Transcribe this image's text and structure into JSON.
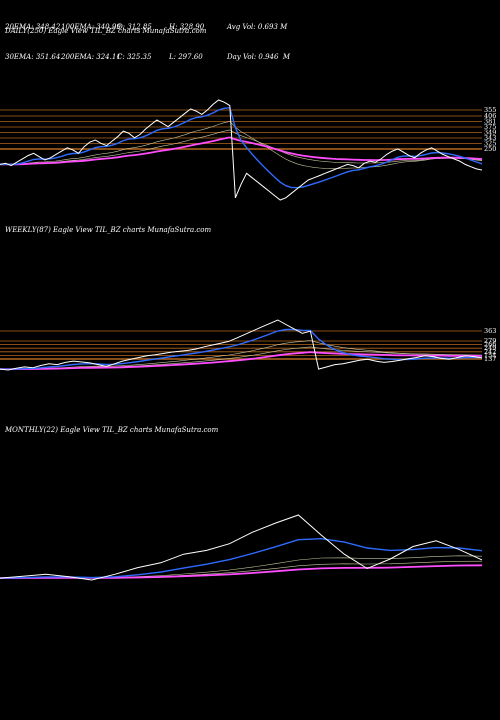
{
  "stats": {
    "row1": [
      "20EMA: 348.42",
      "100EMA: 340.99",
      "O: 312.85",
      "H: 328.90",
      "Avg Vol: 0.693 M"
    ],
    "row2": [
      "30EMA: 351.64",
      "200EMA: 324.11",
      "C: 325.35",
      "L: 297.60",
      "Day Vol: 0.946  M"
    ]
  },
  "colors": {
    "background": "#000000",
    "price": "#ffffff",
    "ema_fast": "#2f6bff",
    "ema_long": "#ff4dff",
    "level_line": "#b5651d",
    "ema_misc": "#c8c8a0"
  },
  "chart_data": [
    {
      "type": "line",
      "title": "DAILY(250) Eagle  View  TIL_BZ charts MunafaSutra.com",
      "level_labels": [
        "355",
        "406",
        "381",
        "375",
        "349",
        "343",
        "325",
        "250"
      ],
      "y_scale": "unlabeled",
      "series": [
        {
          "values": [
            330,
            331,
            329,
            332,
            335,
            338,
            340,
            337,
            334,
            336,
            339,
            342,
            345,
            343,
            340,
            346,
            350,
            352,
            349,
            347,
            351,
            355,
            360,
            358,
            354,
            357,
            362,
            366,
            370,
            367,
            364,
            368,
            372,
            376,
            380,
            378,
            375,
            379,
            384,
            388,
            386,
            383,
            300,
            312,
            322,
            318,
            314,
            310,
            306,
            302,
            298,
            300,
            304,
            308,
            312,
            316,
            318,
            320,
            322,
            324,
            326,
            328,
            330,
            329,
            327,
            331,
            333,
            332,
            335,
            339,
            342,
            344,
            341,
            338,
            336,
            340,
            343,
            345,
            342,
            339,
            337,
            335,
            333,
            330,
            328,
            326,
            325
          ]
        }
      ]
    },
    {
      "type": "line",
      "title": "WEEKLY(87) Eagle  View  TIL_BZ charts MunafaSutra.com",
      "level_labels": [
        "363",
        "279",
        "266",
        "249",
        "242",
        "154",
        "137"
      ],
      "y_scale": "unlabeled",
      "series": [
        {
          "values": [
            240,
            238,
            242,
            245,
            243,
            248,
            252,
            250,
            255,
            258,
            256,
            254,
            250,
            246,
            252,
            258,
            262,
            266,
            270,
            272,
            275,
            278,
            280,
            282,
            285,
            290,
            294,
            298,
            302,
            310,
            318,
            326,
            334,
            342,
            350,
            340,
            330,
            320,
            325,
            240,
            245,
            250,
            252,
            256,
            260,
            262,
            258,
            255,
            257,
            260,
            263,
            266,
            270,
            268,
            264,
            262,
            266,
            270,
            268,
            265
          ]
        }
      ]
    },
    {
      "type": "line",
      "title": "MONTHLY(22) Eagle  View  TIL_BZ charts MunafaSutra.com",
      "level_labels": [],
      "y_scale": "unlabeled",
      "series": [
        {
          "values": [
            100,
            104,
            108,
            103,
            96,
            108,
            122,
            132,
            150,
            158,
            172,
            196,
            215,
            232,
            190,
            150,
            120,
            140,
            166,
            178,
            160,
            138
          ]
        }
      ]
    }
  ]
}
